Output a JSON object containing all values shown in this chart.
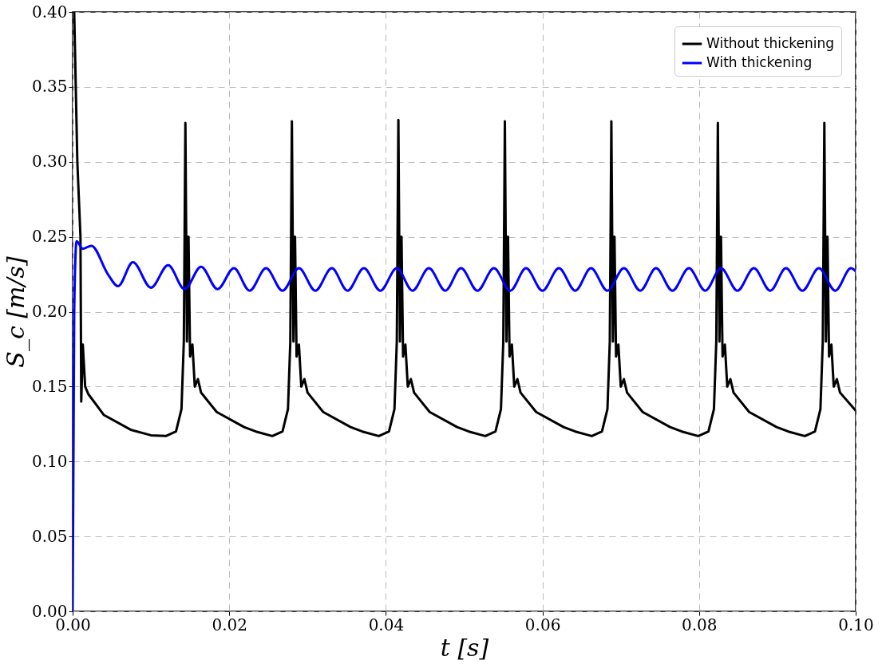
{
  "chart_data": {
    "type": "line",
    "xlabel": "t [s]",
    "ylabel": "S_c [m/s]",
    "xlim": [
      0,
      0.1
    ],
    "ylim": [
      0,
      0.4
    ],
    "xticks": [
      {
        "value": 0,
        "label": "0.00"
      },
      {
        "value": 0.02,
        "label": "0.02"
      },
      {
        "value": 0.04,
        "label": "0.04"
      },
      {
        "value": 0.06,
        "label": "0.06"
      },
      {
        "value": 0.08,
        "label": "0.08"
      },
      {
        "value": 0.1,
        "label": "0.10"
      }
    ],
    "yticks": [
      {
        "value": 0,
        "label": "0.00"
      },
      {
        "value": 0.05,
        "label": "0.05"
      },
      {
        "value": 0.1,
        "label": "0.10"
      },
      {
        "value": 0.15,
        "label": "0.15"
      },
      {
        "value": 0.2,
        "label": "0.20"
      },
      {
        "value": 0.25,
        "label": "0.25"
      },
      {
        "value": 0.3,
        "label": "0.30"
      },
      {
        "value": 0.35,
        "label": "0.35"
      },
      {
        "value": 0.4,
        "label": "0.40"
      }
    ],
    "grid": true,
    "legend": "top right",
    "line_style": "solid",
    "series": [
      {
        "name": "Without thickening",
        "color": "#000000",
        "x": [
          0.0002,
          0.0006,
          0.001,
          0.0011,
          0.0013,
          0.0016,
          0.002,
          0.004,
          0.0075,
          0.01,
          0.0119,
          0.0132,
          0.0139,
          0.0142,
          0.0144,
          0.0146,
          0.0148,
          0.015,
          0.0153,
          0.0156,
          0.016,
          0.0164,
          0.0184,
          0.0219,
          0.0234,
          0.0255,
          0.0268,
          0.0275,
          0.0278,
          0.028,
          0.0282,
          0.0284,
          0.0286,
          0.0289,
          0.0292,
          0.0296,
          0.03,
          0.032,
          0.0355,
          0.037,
          0.0391,
          0.0404,
          0.0411,
          0.0414,
          0.0416,
          0.0418,
          0.042,
          0.0422,
          0.0425,
          0.0428,
          0.0432,
          0.0436,
          0.0456,
          0.0491,
          0.0506,
          0.0527,
          0.054,
          0.0547,
          0.055,
          0.0552,
          0.0554,
          0.0556,
          0.0558,
          0.0561,
          0.0564,
          0.0568,
          0.0572,
          0.0592,
          0.0627,
          0.0642,
          0.0663,
          0.0676,
          0.0683,
          0.0686,
          0.0688,
          0.069,
          0.0692,
          0.0694,
          0.0697,
          0.07,
          0.0704,
          0.0708,
          0.0728,
          0.0763,
          0.0778,
          0.0799,
          0.0812,
          0.0819,
          0.0822,
          0.0824,
          0.0826,
          0.0828,
          0.083,
          0.0833,
          0.0836,
          0.084,
          0.0844,
          0.0864,
          0.0899,
          0.0914,
          0.0935,
          0.0948,
          0.0955,
          0.0958,
          0.096,
          0.0962,
          0.0964,
          0.0966,
          0.0969,
          0.0972,
          0.0976,
          0.098,
          0.1
        ],
        "values": [
          0.4,
          0.3,
          0.25,
          0.14,
          0.178,
          0.15,
          0.145,
          0.131,
          0.121,
          0.1175,
          0.117,
          0.12,
          0.135,
          0.18,
          0.326,
          0.18,
          0.25,
          0.17,
          0.178,
          0.15,
          0.155,
          0.146,
          0.133,
          0.123,
          0.12,
          0.117,
          0.12,
          0.135,
          0.18,
          0.327,
          0.18,
          0.25,
          0.17,
          0.178,
          0.15,
          0.155,
          0.146,
          0.133,
          0.123,
          0.12,
          0.117,
          0.12,
          0.135,
          0.18,
          0.328,
          0.18,
          0.25,
          0.17,
          0.178,
          0.15,
          0.155,
          0.146,
          0.133,
          0.123,
          0.12,
          0.117,
          0.12,
          0.135,
          0.18,
          0.327,
          0.18,
          0.25,
          0.17,
          0.178,
          0.15,
          0.155,
          0.146,
          0.133,
          0.123,
          0.12,
          0.117,
          0.12,
          0.135,
          0.18,
          0.327,
          0.18,
          0.25,
          0.17,
          0.178,
          0.15,
          0.155,
          0.146,
          0.133,
          0.123,
          0.12,
          0.117,
          0.12,
          0.135,
          0.18,
          0.326,
          0.18,
          0.25,
          0.17,
          0.178,
          0.15,
          0.155,
          0.146,
          0.133,
          0.123,
          0.12,
          0.117,
          0.12,
          0.135,
          0.18,
          0.326,
          0.18,
          0.25,
          0.17,
          0.178,
          0.15,
          0.155,
          0.146,
          0.134
        ]
      },
      {
        "name": "With thickening",
        "color": "#0000ff",
        "x": [
          0,
          0.0002,
          0.0005,
          0.0013,
          0.0024,
          0.0045,
          0.0058,
          0.0077,
          0.01,
          0.0122,
          0.0143,
          0.0164,
          0.0185,
          0.0206,
          0.0226,
          0.0247,
          0.0268,
          0.0289,
          0.031,
          0.0331,
          0.0351,
          0.0372,
          0.0393,
          0.0414,
          0.0434,
          0.0455,
          0.0476,
          0.0496,
          0.0517,
          0.0538,
          0.0559,
          0.0579,
          0.06,
          0.0621,
          0.0642,
          0.0662,
          0.0683,
          0.0704,
          0.0725,
          0.0745,
          0.0766,
          0.0787,
          0.0808,
          0.0828,
          0.0849,
          0.087,
          0.0891,
          0.0911,
          0.0932,
          0.0953,
          0.0974,
          0.0994,
          0.1
        ],
        "values": [
          0,
          0.2,
          0.247,
          0.242,
          0.244,
          0.225,
          0.217,
          0.233,
          0.216,
          0.231,
          0.215,
          0.23,
          0.215,
          0.229,
          0.214,
          0.229,
          0.214,
          0.229,
          0.214,
          0.229,
          0.214,
          0.229,
          0.214,
          0.229,
          0.214,
          0.229,
          0.214,
          0.229,
          0.214,
          0.229,
          0.214,
          0.229,
          0.214,
          0.229,
          0.214,
          0.229,
          0.214,
          0.229,
          0.214,
          0.229,
          0.214,
          0.229,
          0.214,
          0.229,
          0.214,
          0.229,
          0.214,
          0.229,
          0.214,
          0.229,
          0.214,
          0.229,
          0.227
        ]
      }
    ]
  }
}
